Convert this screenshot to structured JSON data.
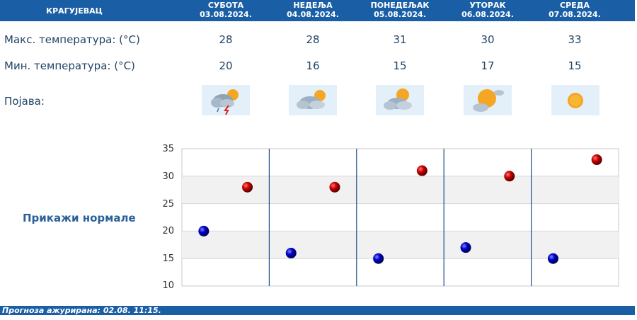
{
  "city": "КРАГУЈЕВАЦ",
  "days": [
    {
      "name": "СУБОТА",
      "date": "03.08.2024.",
      "max": "28",
      "min": "20",
      "icon": "thunderstorm-partly-cloudy-icon"
    },
    {
      "name": "НЕДЕЉА",
      "date": "04.08.2024.",
      "max": "28",
      "min": "16",
      "icon": "cloudy-sun-icon"
    },
    {
      "name": "ПОНЕДЕЉАК",
      "date": "05.08.2024.",
      "max": "31",
      "min": "15",
      "icon": "cloudy-sun-icon"
    },
    {
      "name": "УТОРАК",
      "date": "06.08.2024.",
      "max": "30",
      "min": "17",
      "icon": "mostly-sunny-icon"
    },
    {
      "name": "СРЕДА",
      "date": "07.08.2024.",
      "max": "33",
      "min": "15",
      "icon": "sunny-icon"
    }
  ],
  "labels": {
    "max_temp": "Макс. температура: (°C)",
    "min_temp": "Мин. температура: (°C)",
    "phenomenon": "Појава:"
  },
  "show_normals": "Прикажи нормале",
  "footer": "Прогноза ажурирана:  02.08. 11:15.",
  "colors": {
    "header": "#1a5fa6",
    "max_point": "#cc0000",
    "min_point": "#0000cc",
    "text": "#224466"
  },
  "chart_data": {
    "type": "scatter",
    "categories": [
      "03.08.2024.",
      "04.08.2024.",
      "05.08.2024.",
      "06.08.2024.",
      "07.08.2024."
    ],
    "series": [
      {
        "values": [
          28,
          28,
          31,
          30,
          33
        ]
      },
      {
        "values": [
          20,
          16,
          15,
          17,
          15
        ]
      }
    ],
    "yticks": [
      "35",
      "30",
      "25",
      "20",
      "15",
      "10"
    ],
    "ylim": [
      10,
      35
    ],
    "grid": true
  }
}
